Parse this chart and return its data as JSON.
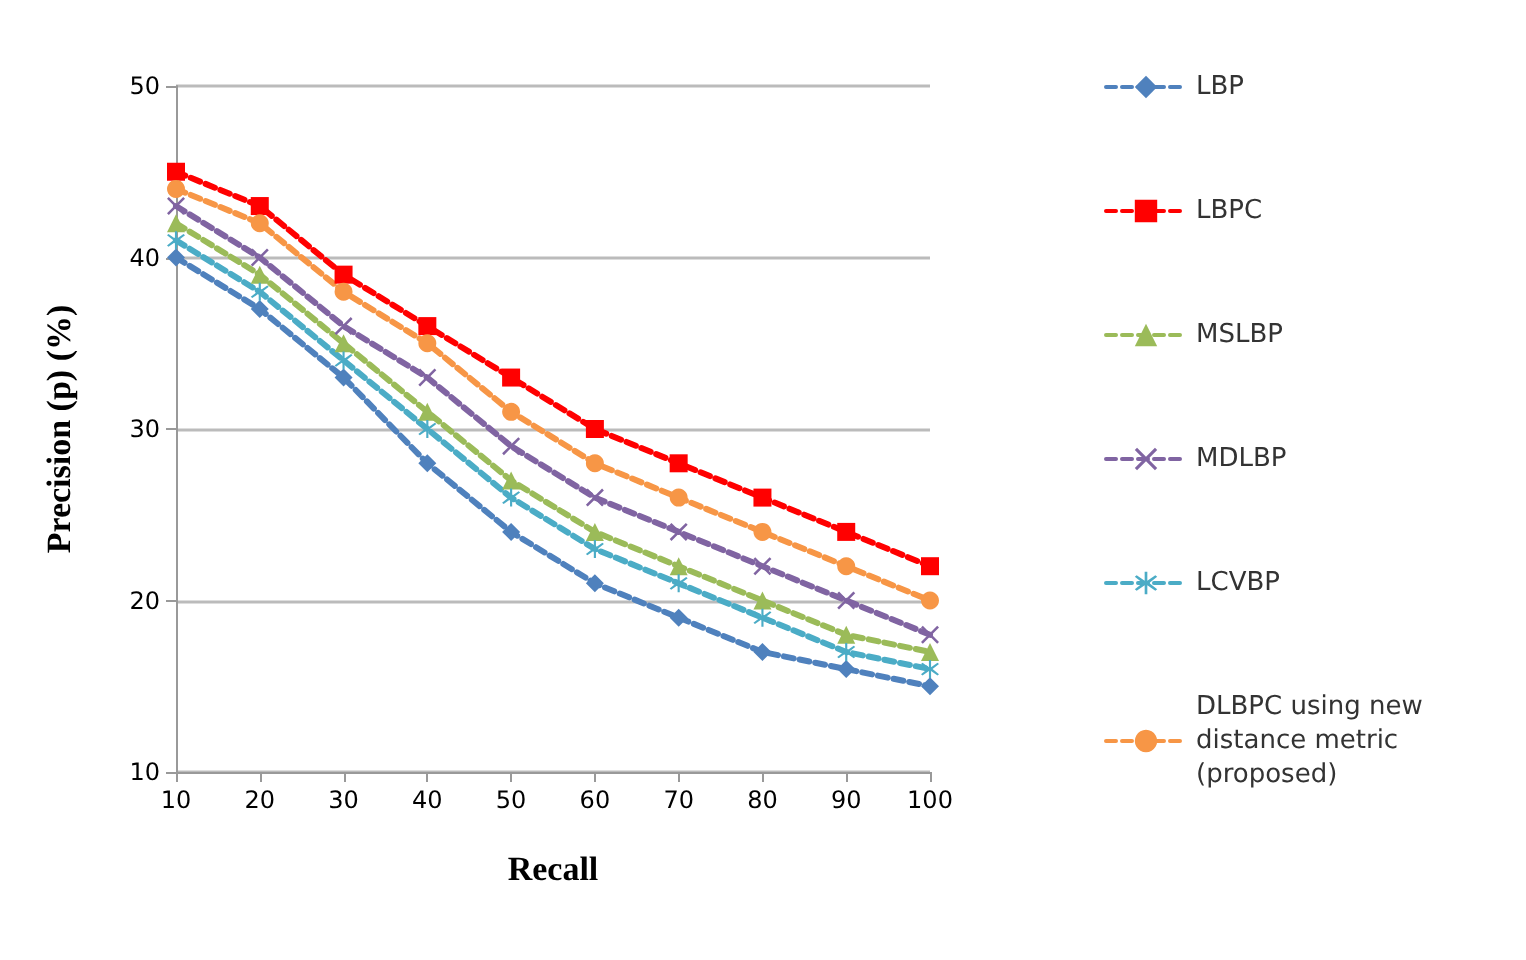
{
  "chart_data": {
    "type": "line",
    "xlabel": "Recall",
    "ylabel": "Precision (p) (%)",
    "categories": [
      "10",
      "20",
      "30",
      "40",
      "50",
      "60",
      "70",
      "80",
      "90",
      "100"
    ],
    "ylim": [
      10,
      50
    ],
    "yticks": [
      10,
      20,
      30,
      40,
      50
    ],
    "grid": "y",
    "legend": "right",
    "line_style": "dashed",
    "series": [
      {
        "name": "LBP",
        "color": "#4f81bd",
        "marker": "diamond",
        "values": [
          40,
          37,
          33,
          28,
          24,
          21,
          19,
          17,
          16,
          15
        ]
      },
      {
        "name": "LBPC",
        "color": "#ff0000",
        "marker": "square",
        "values": [
          45,
          43,
          39,
          36,
          33,
          30,
          28,
          26,
          24,
          22
        ]
      },
      {
        "name": "MSLBP",
        "color": "#9bbb59",
        "marker": "triangle",
        "values": [
          42,
          39,
          35,
          31,
          27,
          24,
          22,
          20,
          18,
          17
        ]
      },
      {
        "name": "MDLBP",
        "color": "#8064a2",
        "marker": "cross",
        "values": [
          43,
          40,
          36,
          33,
          29,
          26,
          24,
          22,
          20,
          18
        ]
      },
      {
        "name": "LCVBP",
        "color": "#4bacc6",
        "marker": "star",
        "values": [
          41,
          38,
          34,
          30,
          26,
          23,
          21,
          19,
          17,
          16
        ]
      },
      {
        "name": "DLBPC using new distance metric (proposed)",
        "color": "#f79646",
        "marker": "circle",
        "values": [
          44,
          42,
          38,
          35,
          31,
          28,
          26,
          24,
          22,
          20
        ]
      }
    ]
  }
}
